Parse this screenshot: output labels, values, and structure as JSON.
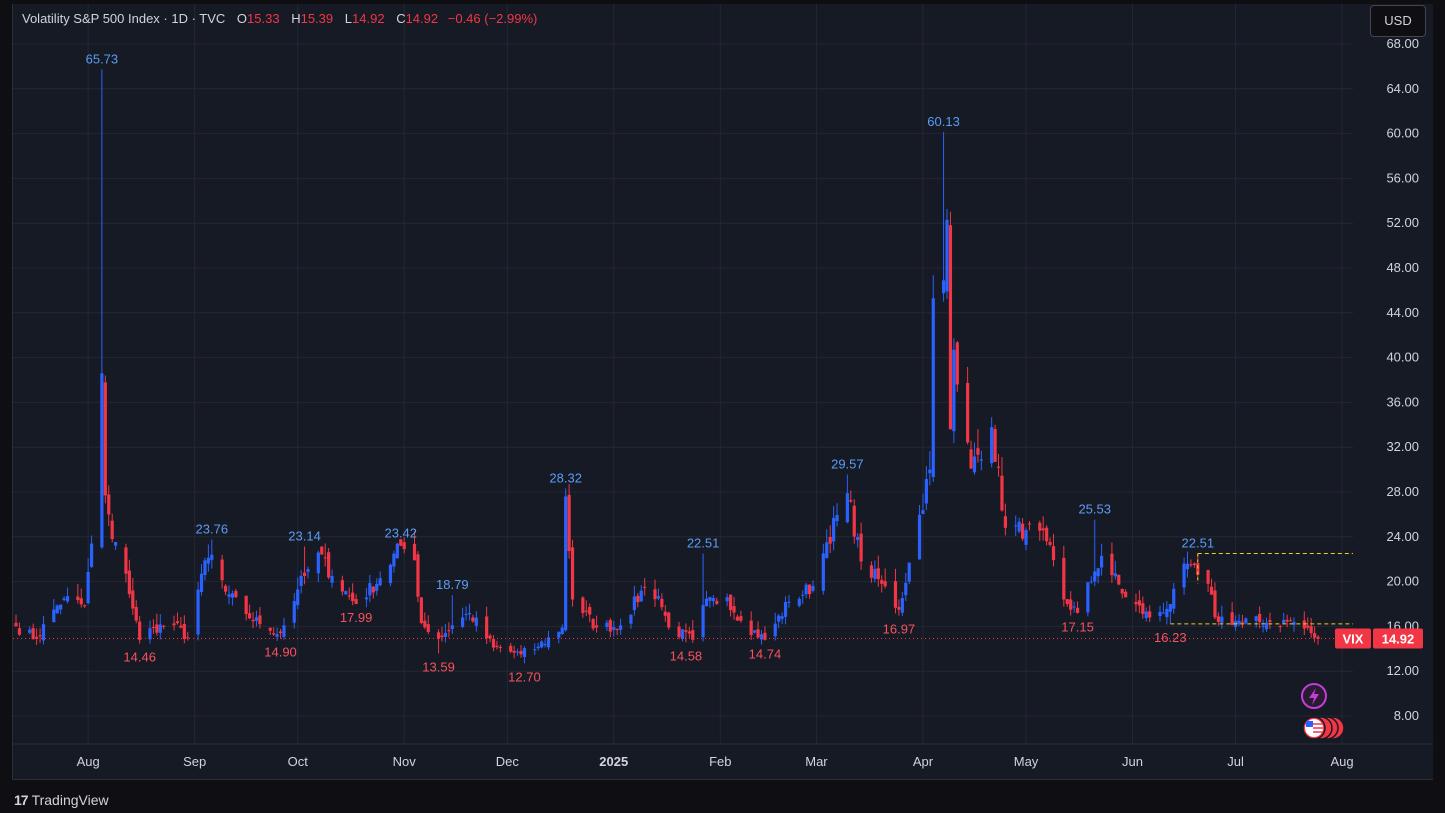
{
  "legend": {
    "title": "Volatility S&P 500 Index · 1D · TVC",
    "open_label": "O",
    "open": "15.33",
    "high_label": "H",
    "high": "15.39",
    "low_label": "L",
    "low": "14.92",
    "close_label": "C",
    "close": "14.92",
    "change": "−0.46 (−2.99%)"
  },
  "currency": "USD",
  "brand": "TradingView",
  "price_badge": {
    "symbol": "VIX",
    "value": "14.92"
  },
  "colors": {
    "up": "#2962ff",
    "down": "#f23645",
    "background": "#161a25",
    "grid": "#242733",
    "axis_text": "#d1d4dc",
    "target_line": "#e8d21d"
  },
  "chart_data": {
    "type": "candlestick",
    "symbol": "VIX",
    "interval": "1D",
    "ylim": [
      6,
      72
    ],
    "y_ticks": [
      "8.00",
      "12.00",
      "16.00",
      "20.00",
      "24.00",
      "28.00",
      "32.00",
      "36.00",
      "40.00",
      "44.00",
      "48.00",
      "52.00",
      "56.00",
      "60.00",
      "64.00",
      "68.00"
    ],
    "x_ticks": [
      "Aug",
      "Sep",
      "Oct",
      "Nov",
      "Dec",
      "2025",
      "Feb",
      "Mar",
      "Apr",
      "May",
      "Jun",
      "Jul",
      "Aug"
    ],
    "x_tick_dates": [
      "2024-08-01",
      "2024-09-01",
      "2024-10-01",
      "2024-11-01",
      "2024-12-01",
      "2025-01-01",
      "2025-02-01",
      "2025-03-01",
      "2025-04-01",
      "2025-05-01",
      "2025-06-01",
      "2025-07-01",
      "2025-08-01"
    ],
    "x_range": [
      "2024-07-11",
      "2025-08-10"
    ],
    "current_price": 14.92,
    "callouts": [
      {
        "date": "2024-08-05",
        "value": "65.73",
        "kind": "high"
      },
      {
        "date": "2024-08-16",
        "value": "14.46",
        "kind": "low"
      },
      {
        "date": "2024-09-06",
        "value": "23.76",
        "kind": "high"
      },
      {
        "date": "2024-09-26",
        "value": "14.90",
        "kind": "low"
      },
      {
        "date": "2024-10-03",
        "value": "23.14",
        "kind": "high"
      },
      {
        "date": "2024-10-18",
        "value": "17.99",
        "kind": "low"
      },
      {
        "date": "2024-10-31",
        "value": "23.42",
        "kind": "high"
      },
      {
        "date": "2024-11-11",
        "value": "13.59",
        "kind": "low"
      },
      {
        "date": "2024-11-15",
        "value": "18.79",
        "kind": "high"
      },
      {
        "date": "2024-12-06",
        "value": "12.70",
        "kind": "low"
      },
      {
        "date": "2024-12-18",
        "value": "28.32",
        "kind": "high"
      },
      {
        "date": "2025-01-22",
        "value": "14.58",
        "kind": "low"
      },
      {
        "date": "2025-01-27",
        "value": "22.51",
        "kind": "high"
      },
      {
        "date": "2025-02-14",
        "value": "14.74",
        "kind": "low"
      },
      {
        "date": "2025-03-10",
        "value": "29.57",
        "kind": "high"
      },
      {
        "date": "2025-03-25",
        "value": "16.97",
        "kind": "low"
      },
      {
        "date": "2025-04-07",
        "value": "60.13",
        "kind": "high"
      },
      {
        "date": "2025-05-16",
        "value": "17.15",
        "kind": "low"
      },
      {
        "date": "2025-05-21",
        "value": "25.53",
        "kind": "high"
      },
      {
        "date": "2025-06-12",
        "value": "16.23",
        "kind": "low"
      },
      {
        "date": "2025-06-20",
        "value": "22.51",
        "kind": "high"
      }
    ],
    "anchors": [
      [
        "2024-07-11",
        16.0
      ],
      [
        "2024-07-17",
        14.9
      ],
      [
        "2024-07-22",
        17.5
      ],
      [
        "2024-07-25",
        18.5
      ],
      [
        "2024-07-31",
        17.8
      ],
      [
        "2024-08-02",
        23.4
      ],
      [
        "2024-08-05",
        38.6
      ],
      [
        "2024-08-06",
        27.7
      ],
      [
        "2024-08-08",
        23.8
      ],
      [
        "2024-08-12",
        20.7
      ],
      [
        "2024-08-16",
        14.8
      ],
      [
        "2024-08-20",
        15.9
      ],
      [
        "2024-08-26",
        16.1
      ],
      [
        "2024-08-30",
        15.0
      ],
      [
        "2024-09-03",
        20.7
      ],
      [
        "2024-09-06",
        22.4
      ],
      [
        "2024-09-10",
        19.1
      ],
      [
        "2024-09-16",
        17.1
      ],
      [
        "2024-09-20",
        16.2
      ],
      [
        "2024-09-26",
        15.4
      ],
      [
        "2024-10-01",
        19.3
      ],
      [
        "2024-10-03",
        20.5
      ],
      [
        "2024-10-07",
        22.6
      ],
      [
        "2024-10-11",
        20.5
      ],
      [
        "2024-10-18",
        18.0
      ],
      [
        "2024-10-25",
        20.3
      ],
      [
        "2024-10-31",
        23.2
      ],
      [
        "2024-11-04",
        21.9
      ],
      [
        "2024-11-06",
        16.3
      ],
      [
        "2024-11-11",
        14.9
      ],
      [
        "2024-11-15",
        16.1
      ],
      [
        "2024-11-20",
        17.2
      ],
      [
        "2024-11-27",
        14.1
      ],
      [
        "2024-12-05",
        13.5
      ],
      [
        "2024-12-10",
        14.2
      ],
      [
        "2024-12-17",
        15.9
      ],
      [
        "2024-12-18",
        27.6
      ],
      [
        "2024-12-20",
        18.4
      ],
      [
        "2024-12-27",
        15.9
      ],
      [
        "2025-01-03",
        16.1
      ],
      [
        "2025-01-10",
        19.5
      ],
      [
        "2025-01-14",
        18.7
      ],
      [
        "2025-01-17",
        15.9
      ],
      [
        "2025-01-24",
        14.8
      ],
      [
        "2025-01-27",
        17.9
      ],
      [
        "2025-02-03",
        18.6
      ],
      [
        "2025-02-07",
        16.5
      ],
      [
        "2025-02-14",
        14.8
      ],
      [
        "2025-02-21",
        18.2
      ],
      [
        "2025-02-28",
        19.6
      ],
      [
        "2025-03-04",
        23.5
      ],
      [
        "2025-03-10",
        27.9
      ],
      [
        "2025-03-14",
        21.8
      ],
      [
        "2025-03-20",
        19.8
      ],
      [
        "2025-03-25",
        17.5
      ],
      [
        "2025-03-28",
        21.7
      ],
      [
        "2025-04-03",
        30.0
      ],
      [
        "2025-04-04",
        45.3
      ],
      [
        "2025-04-07",
        46.9
      ],
      [
        "2025-04-08",
        52.3
      ],
      [
        "2025-04-09",
        33.6
      ],
      [
        "2025-04-10",
        40.7
      ],
      [
        "2025-04-11",
        37.6
      ],
      [
        "2025-04-15",
        30.1
      ],
      [
        "2025-04-21",
        33.8
      ],
      [
        "2025-04-25",
        24.8
      ],
      [
        "2025-05-01",
        24.6
      ],
      [
        "2025-05-07",
        23.6
      ],
      [
        "2025-05-12",
        18.4
      ],
      [
        "2025-05-16",
        17.2
      ],
      [
        "2025-05-21",
        20.9
      ],
      [
        "2025-05-23",
        22.3
      ],
      [
        "2025-05-30",
        18.6
      ],
      [
        "2025-06-06",
        16.8
      ],
      [
        "2025-06-12",
        18.0
      ],
      [
        "2025-06-17",
        21.6
      ],
      [
        "2025-06-20",
        20.6
      ],
      [
        "2025-06-23",
        19.8
      ],
      [
        "2025-06-25",
        16.8
      ],
      [
        "2025-07-03",
        16.4
      ],
      [
        "2025-07-11",
        16.4
      ],
      [
        "2025-07-18",
        16.4
      ],
      [
        "2025-07-23",
        15.4
      ],
      [
        "2025-07-25",
        14.9
      ]
    ]
  }
}
